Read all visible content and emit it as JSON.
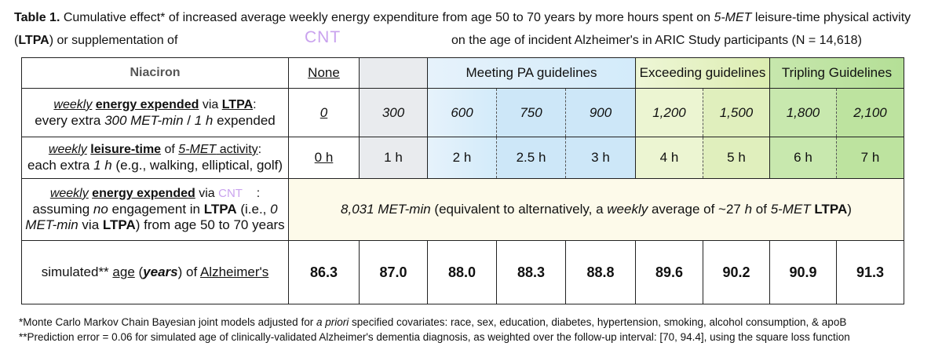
{
  "caption": {
    "label": "Table 1.",
    "line1_part1": " Cumulative effect* of increased average weekly energy expenditure from age 50 to 70 years by more hours spent on ",
    "line1_met": "5-MET",
    "line1_part2": " leisure-time physical activity",
    "line2_open": "(",
    "line2_ltpa": "LTPA",
    "line2_part": ") or supplementation of",
    "cnt": "CNT",
    "line2_rest": "on the age of incident Alzheimer's in ARIC Study participants (N = 14,618)"
  },
  "table": {
    "corner": "Niaciron",
    "headers": {
      "none": "None",
      "meeting": "Meeting PA guidelines",
      "exceeding": "Exceeding guidelines",
      "tripling": "Tripling Guidelines"
    },
    "row_energy": {
      "l1_weekly": "weekly",
      "l1_energy": "energy expended",
      "l1_via": " via ",
      "l1_ltpa": "LTPA",
      "l1_colon": ":",
      "l2_pre": "every extra ",
      "l2_met": "300 MET-min",
      "l2_mid": " / ",
      "l2_h": "1 h",
      "l2_post": " expended",
      "values": [
        "0",
        "300",
        "600",
        "750",
        "900",
        "1,200",
        "1,500",
        "1,800",
        "2,100"
      ]
    },
    "row_time": {
      "l1_weekly": "weekly",
      "l1_leisure": "leisure-time",
      "l1_of": " of ",
      "l1_met": "5-MET",
      "l1_activity": " activity",
      "l1_colon": ":",
      "l2_pre": "each extra ",
      "l2_h": "1 h",
      "l2_post": " (e.g., walking, elliptical, golf)",
      "values": [
        "0 h",
        "1 h",
        "2 h",
        "2.5 h",
        "3 h",
        "4 h",
        "5 h",
        "6 h",
        "7 h"
      ]
    },
    "row_cnt": {
      "l1_weekly": "weekly",
      "l1_energy": "energy expended",
      "l1_via": " via ",
      "l1_cnt": "CNT",
      "l1_colon": ":",
      "l2_pre": "assuming ",
      "l2_no": "no",
      "l2_mid": " engagement in ",
      "l2_ltpa": "LTPA",
      "l2_post": " (i.e., ",
      "l2_zero": "0",
      "l3_met": "MET-min",
      "l3_via": " via ",
      "l3_ltpa": "LTPA",
      "l3_post": ") from age 50 to 70 years",
      "merged_met": "8,031 MET-min",
      "merged_mid": " (equivalent to alternatively, a ",
      "merged_weekly": "weekly",
      "merged_avg": " average of ~27 ",
      "merged_h": "h",
      "merged_of": " of ",
      "merged_5met": "5-MET",
      "merged_sp": " ",
      "merged_ltpa": "LTPA",
      "merged_close": ")"
    },
    "row_age": {
      "l_sim": "simulated** ",
      "l_age": "age",
      "l_open": " (",
      "l_years": "years",
      "l_close": ") of ",
      "l_alz": "Alzheimer's",
      "values": [
        "86.3",
        "87.0",
        "88.0",
        "88.3",
        "88.8",
        "89.6",
        "90.2",
        "90.9",
        "91.3"
      ]
    }
  },
  "footnotes": {
    "f1_star": "*",
    "f1_a": "Monte Carlo Markov Chain Bayesian joint models adjusted for ",
    "f1_i": "a priori",
    "f1_b": " specified covariates: race, sex, education, diabetes, hypertension, smoking, alcohol consumption, & apoB",
    "f2_star": "**",
    "f2_text": "Prediction error = 0.06 for simulated age of clinically-validated Alzheimer's dementia diagnosis, as weighted over the follow-up interval: [70, 94.4], using the square loss function"
  }
}
